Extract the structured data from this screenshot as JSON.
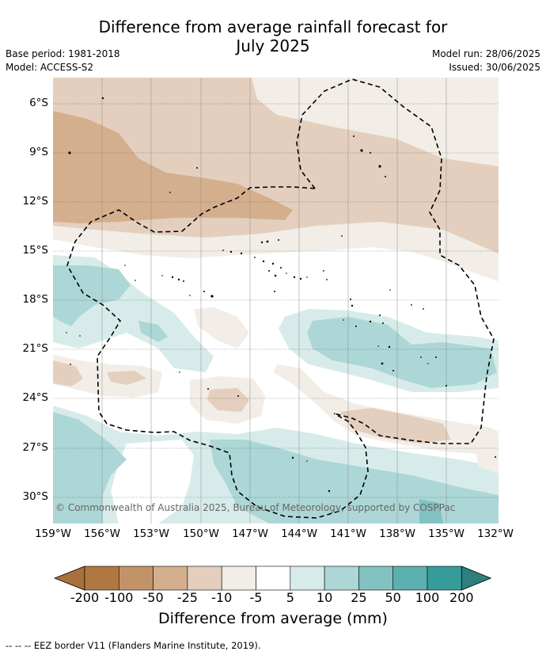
{
  "title_line1": "Difference from average rainfall forecast for",
  "title_line2": "July 2025",
  "meta": {
    "base_period": "Base period: 1981-2018",
    "model": "Model: ACCESS-S2",
    "model_run": "Model run: 28/06/2025",
    "issued": "Issued: 30/06/2025"
  },
  "lat_labels": [
    "6°S",
    "9°S",
    "12°S",
    "15°S",
    "18°S",
    "21°S",
    "24°S",
    "27°S",
    "30°S"
  ],
  "lon_labels": [
    "159°W",
    "156°W",
    "153°W",
    "150°W",
    "147°W",
    "144°W",
    "141°W",
    "138°W",
    "135°W",
    "132°W"
  ],
  "credit": "© Commonwealth of Australia 2025, Bureau of Meteorology, supported by COSPPac",
  "colorbar": {
    "title": "Difference from average (mm)",
    "ticks": [
      "-200",
      "-100",
      "-50",
      "-25",
      "-10",
      "-5",
      "5",
      "10",
      "25",
      "50",
      "100",
      "200"
    ],
    "colors": [
      "#a8713a",
      "#b07840",
      "#c29369",
      "#d4af8e",
      "#e4cfbe",
      "#f2ede6",
      "#ffffff",
      "#d7ecea",
      "#acd7d6",
      "#82c2c1",
      "#5cb0af",
      "#369c9a",
      "#2e7f7e"
    ]
  },
  "footnote": "--  --  -- EEZ border V11 (Flanders Marine Institute, 2019)."
}
